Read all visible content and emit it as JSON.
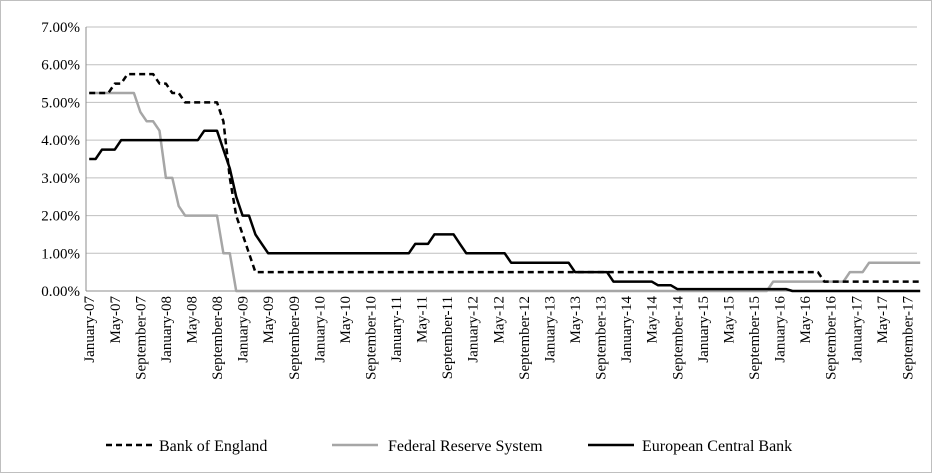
{
  "chart_data": {
    "type": "line",
    "title": "",
    "xlabel": "",
    "ylabel": "",
    "ylim": [
      0,
      7
    ],
    "y_ticks": [
      "0.00%",
      "1.00%",
      "2.00%",
      "3.00%",
      "4.00%",
      "5.00%",
      "6.00%",
      "7.00%"
    ],
    "x_tick_labels": [
      "January-07",
      "May-07",
      "September-07",
      "January-08",
      "May-08",
      "September-08",
      "January-09",
      "May-09",
      "September-09",
      "January-10",
      "May-10",
      "September-10",
      "January-11",
      "May-11",
      "September-11",
      "January-12",
      "May-12",
      "September-12",
      "January-13",
      "May-13",
      "September-13",
      "January-14",
      "May-14",
      "September-14",
      "January-15",
      "May-15",
      "September-15",
      "January-16",
      "May-16",
      "September-16",
      "January-17",
      "May-17",
      "September-17"
    ],
    "grid": "horizontal",
    "legend_position": "bottom",
    "series": [
      {
        "name": "Bank of England",
        "color": "#000000",
        "dash": "dashed",
        "points": [
          [
            "2007-01",
            5.25
          ],
          [
            "2007-05",
            5.5
          ],
          [
            "2007-07",
            5.75
          ],
          [
            "2007-12",
            5.5
          ],
          [
            "2008-02",
            5.25
          ],
          [
            "2008-04",
            5.0
          ],
          [
            "2008-10",
            4.5
          ],
          [
            "2008-11",
            3.0
          ],
          [
            "2008-12",
            2.0
          ],
          [
            "2009-01",
            1.5
          ],
          [
            "2009-02",
            1.0
          ],
          [
            "2009-03",
            0.5
          ],
          [
            "2016-08",
            0.25
          ],
          [
            "2017-11",
            0.25
          ]
        ]
      },
      {
        "name": "Federal Reserve System",
        "color": "#a6a6a6",
        "dash": "solid",
        "points": [
          [
            "2007-01",
            5.25
          ],
          [
            "2007-08",
            5.25
          ],
          [
            "2007-09",
            4.75
          ],
          [
            "2007-10",
            4.5
          ],
          [
            "2007-12",
            4.25
          ],
          [
            "2008-01",
            3.0
          ],
          [
            "2008-03",
            2.25
          ],
          [
            "2008-04",
            2.0
          ],
          [
            "2008-10",
            1.0
          ],
          [
            "2008-12",
            0.0
          ],
          [
            "2015-12",
            0.25
          ],
          [
            "2016-12",
            0.5
          ],
          [
            "2017-03",
            0.75
          ],
          [
            "2017-11",
            0.75
          ]
        ]
      },
      {
        "name": "European Central Bank",
        "color": "#000000",
        "dash": "solid",
        "points": [
          [
            "2007-01",
            3.5
          ],
          [
            "2007-03",
            3.75
          ],
          [
            "2007-06",
            4.0
          ],
          [
            "2008-07",
            4.25
          ],
          [
            "2008-10",
            3.75
          ],
          [
            "2008-11",
            3.25
          ],
          [
            "2008-12",
            2.5
          ],
          [
            "2009-01",
            2.0
          ],
          [
            "2009-03",
            1.5
          ],
          [
            "2009-04",
            1.25
          ],
          [
            "2009-05",
            1.0
          ],
          [
            "2011-04",
            1.25
          ],
          [
            "2011-07",
            1.5
          ],
          [
            "2011-11",
            1.25
          ],
          [
            "2011-12",
            1.0
          ],
          [
            "2012-07",
            0.75
          ],
          [
            "2013-05",
            0.5
          ],
          [
            "2013-11",
            0.25
          ],
          [
            "2014-06",
            0.15
          ],
          [
            "2014-09",
            0.05
          ],
          [
            "2016-03",
            0.0
          ],
          [
            "2017-11",
            0.0
          ]
        ]
      }
    ]
  },
  "legend": {
    "items": [
      "Bank of England",
      "Federal Reserve System",
      "European Central Bank"
    ]
  }
}
